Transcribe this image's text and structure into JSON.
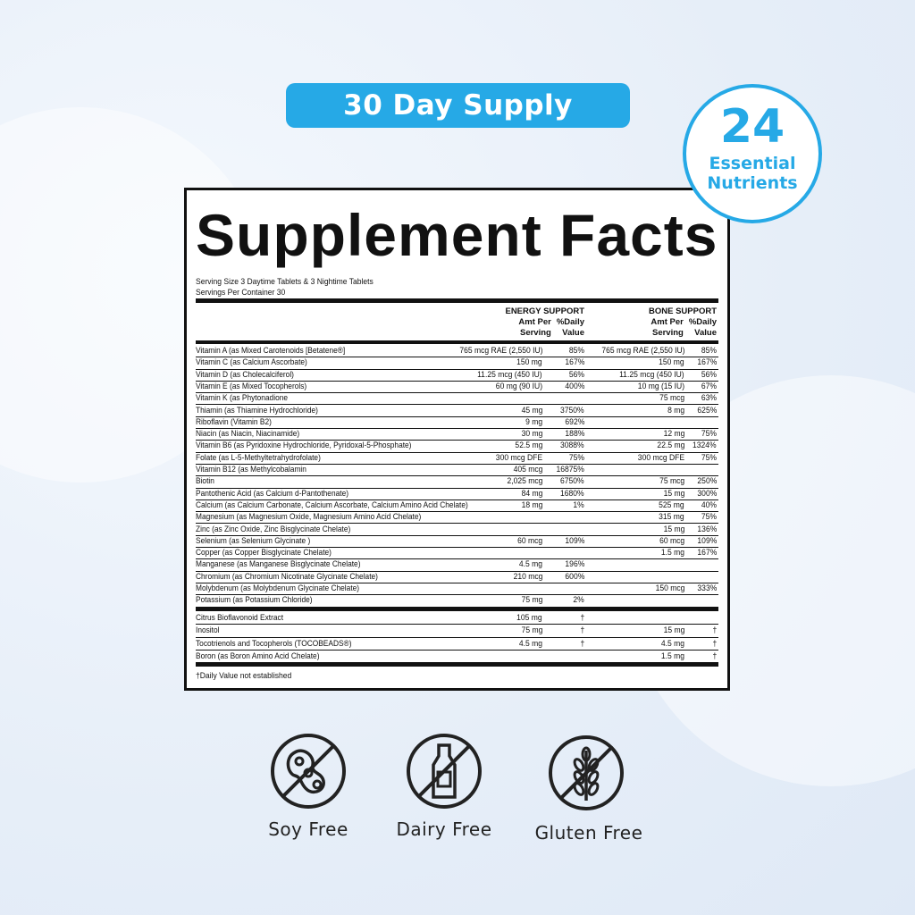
{
  "badge": {
    "label": "30 Day Supply",
    "color": "#26a9e6"
  },
  "nutrients_badge": {
    "count": "24",
    "line1": "Essential",
    "line2": "Nutrients"
  },
  "label": {
    "title": "Supplement Facts",
    "serving_size": "Serving Size 3 Daytime Tablets & 3 Nightime Tablets",
    "servings_per_container": "Servings Per Container 30",
    "groups": [
      {
        "name": "ENERGY SUPPORT",
        "amt": "Amt Per",
        "amt2": "Serving",
        "dv": "%Daily",
        "dv2": "Value"
      },
      {
        "name": "BONE SUPPORT",
        "amt": "Amt Per",
        "amt2": "Serving",
        "dv": "%Daily",
        "dv2": "Value"
      }
    ],
    "rows": [
      [
        "Vitamin A (as Mixed Carotenoids [Betatene®]",
        "765 mcg RAE (2,550 IU)",
        "85%",
        "765 mcg RAE (2,550 IU)",
        "85%"
      ],
      [
        "Vitamin C (as Calcium Ascorbate)",
        "150 mg",
        "167%",
        "150 mg",
        "167%"
      ],
      [
        "Vitamin D (as Cholecalciferol)",
        "11.25 mcg (450 IU)",
        "56%",
        "11.25 mcg (450 IU)",
        "56%"
      ],
      [
        "Vitamin E (as Mixed Tocopherols)",
        "60 mg (90 IU)",
        "400%",
        "10 mg (15 IU)",
        "67%"
      ],
      [
        "Vitamin K (as Phytonadione",
        "",
        "",
        "75 mcg",
        "63%"
      ],
      [
        "Thiamin (as Thiamine Hydrochloride)",
        "45 mg",
        "3750%",
        "8 mg",
        "625%"
      ],
      [
        "Riboflavin (Vitamin B2)",
        "9 mg",
        "692%",
        "",
        ""
      ],
      [
        "Niacin (as Niacin, Niacinamide)",
        "30 mg",
        "188%",
        "12 mg",
        "75%"
      ],
      [
        "Vitamin B6 (as Pyridoxine Hydrochloride, Pyridoxal-5-Phosphate)",
        "52.5 mg",
        "3088%",
        "22.5 mg",
        "1324%"
      ],
      [
        "Folate (as L-5-Methyltetrahydrofolate)",
        "300 mcg DFE",
        "75%",
        "300 mcg DFE",
        "75%"
      ],
      [
        "Vitamin B12 (as Methylcobalamin",
        "405 mcg",
        "16875%",
        "",
        ""
      ],
      [
        "Biotin",
        "2,025 mcg",
        "6750%",
        "75 mcg",
        "250%"
      ],
      [
        "Pantothenic Acid (as Calcium d-Pantothenate)",
        "84 mg",
        "1680%",
        "15 mg",
        "300%"
      ],
      [
        "Calcium (as Calcium Carbonate, Calcium Ascorbate, Calcium Amino Acid Chelate)",
        "18 mg",
        "1%",
        "525 mg",
        "40%"
      ],
      [
        "Magnesium (as Magnesium Oxide, Magnesium Amino Acid Chelate)",
        "",
        "",
        "315 mg",
        "75%"
      ],
      [
        "Zinc (as Zinc Oxide, Zinc Bisglycinate Chelate)",
        "",
        "",
        "15 mg",
        "136%"
      ],
      [
        "Selenium (as Selenium Glycinate )",
        "60 mcg",
        "109%",
        "60 mcg",
        "109%"
      ],
      [
        "Copper (as Copper Bisglycinate Chelate)",
        "",
        "",
        "1.5 mg",
        "167%"
      ],
      [
        "Manganese (as Manganese Bisglycinate Chelate)",
        "4.5 mg",
        "196%",
        "",
        ""
      ],
      [
        "Chromium (as Chromium Nicotinate Glycinate Chelate)",
        "210 mcg",
        "600%",
        "",
        ""
      ],
      [
        "Molybdenum (as Molybdenum Glycinate Chelate)",
        "",
        "",
        "150 mcg",
        "333%"
      ],
      [
        "Potassium (as Potassium Chloride)",
        "75 mg",
        "2%",
        "",
        ""
      ]
    ],
    "other_rows": [
      [
        "Citrus Bioflavonoid Extract",
        "105 mg",
        "†",
        "",
        ""
      ],
      [
        "Inositol",
        "75 mg",
        "†",
        "15 mg",
        "†"
      ],
      [
        "Tocotrienols and Tocopherols (TOCOBEADS®)",
        "4.5 mg",
        "†",
        "4.5 mg",
        "†"
      ],
      [
        "Boron (as Boron Amino Acid Chelate)",
        "",
        "",
        "1.5 mg",
        "†"
      ]
    ],
    "footnote": "†Daily Value not established"
  },
  "features": [
    {
      "label": "Soy Free",
      "icon": "soy-free-icon"
    },
    {
      "label": "Dairy Free",
      "icon": "dairy-free-icon"
    },
    {
      "label": "Gluten Free",
      "icon": "gluten-free-icon"
    }
  ]
}
